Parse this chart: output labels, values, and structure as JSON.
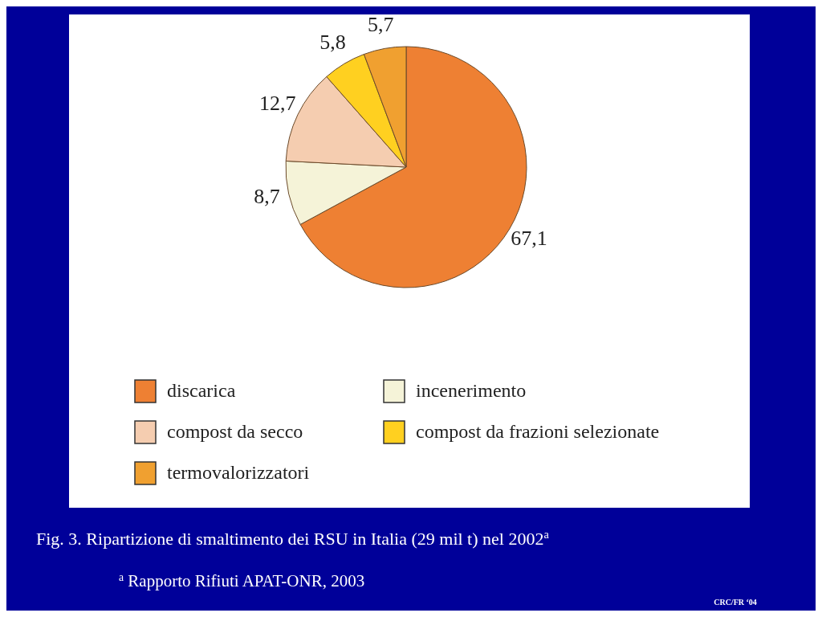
{
  "chart_data": {
    "type": "pie",
    "title": "Fig. 3.  Ripartizione di smaltimento dei RSU in Italia (29 mil t) nel 2002$^{a}$",
    "categories": [
      "discarica",
      "incenerimento",
      "compost da secco",
      "compost da frazioni selezionate",
      "termovalorizzatori"
    ],
    "values": [
      67.1,
      8.7,
      12.7,
      5.8,
      5.7
    ],
    "value_labels": [
      "67,1",
      "8,7",
      "12,7",
      "5,8",
      "5,7"
    ],
    "colors": [
      "#ee8033",
      "#f5f3d8",
      "#f5cdb0",
      "#ffd020",
      "#f0a030"
    ],
    "legend": "bottom",
    "annotations": [
      "$^{a}$ Rapporto Rifiuti APAT-ONR, 2003",
      "CRC/FR ‘04"
    ]
  }
}
